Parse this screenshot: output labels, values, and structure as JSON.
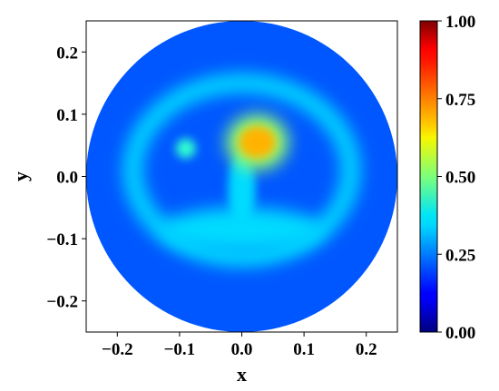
{
  "chart_data": {
    "type": "heatmap",
    "title": "",
    "xlabel": "x",
    "ylabel": "y",
    "xlim": [
      -0.25,
      0.25
    ],
    "ylim": [
      -0.25,
      0.25
    ],
    "x_ticks": [
      -0.2,
      -0.1,
      0.0,
      0.1,
      0.2
    ],
    "x_tick_labels": [
      "−0.2",
      "−0.1",
      "0.0",
      "0.1",
      "0.2"
    ],
    "y_ticks": [
      0.2,
      0.1,
      0.0,
      -0.1,
      -0.2
    ],
    "y_tick_labels": [
      "0.2",
      "0.1",
      "0.0",
      "−0.1",
      "−0.2"
    ],
    "colorbar": {
      "colormap": "jet",
      "range": [
        0.0,
        1.0
      ],
      "ticks": [
        1.0,
        0.75,
        0.5,
        0.25,
        0.0
      ],
      "tick_labels": [
        "1.00",
        "0.75",
        "0.50",
        "0.25",
        "0.00"
      ]
    },
    "domain": {
      "shape": "disk",
      "center": [
        0.0,
        0.0
      ],
      "radius": 0.25
    },
    "background_value": 0.21,
    "features": [
      {
        "name": "outer ring",
        "center": [
          0.0,
          0.01
        ],
        "semi_axes": [
          0.175,
          0.14
        ],
        "thickness": 0.03,
        "value": 0.34
      },
      {
        "name": "lower band",
        "center": [
          0.0,
          -0.085
        ],
        "semi_axes": [
          0.13,
          0.035
        ],
        "value": 0.34
      },
      {
        "name": "central column",
        "center": [
          0.0,
          -0.02
        ],
        "semi_axes": [
          0.022,
          0.06
        ],
        "value": 0.34
      },
      {
        "name": "left small spot",
        "center": [
          -0.09,
          0.045
        ],
        "semi_axes": [
          0.016,
          0.016
        ],
        "value": 0.42
      },
      {
        "name": "bright spot halo",
        "center": [
          0.025,
          0.055
        ],
        "semi_axes": [
          0.05,
          0.045
        ],
        "value": 0.52
      },
      {
        "name": "bright spot core",
        "center": [
          0.025,
          0.055
        ],
        "semi_axes": [
          0.03,
          0.026
        ],
        "value": 0.7
      }
    ]
  }
}
